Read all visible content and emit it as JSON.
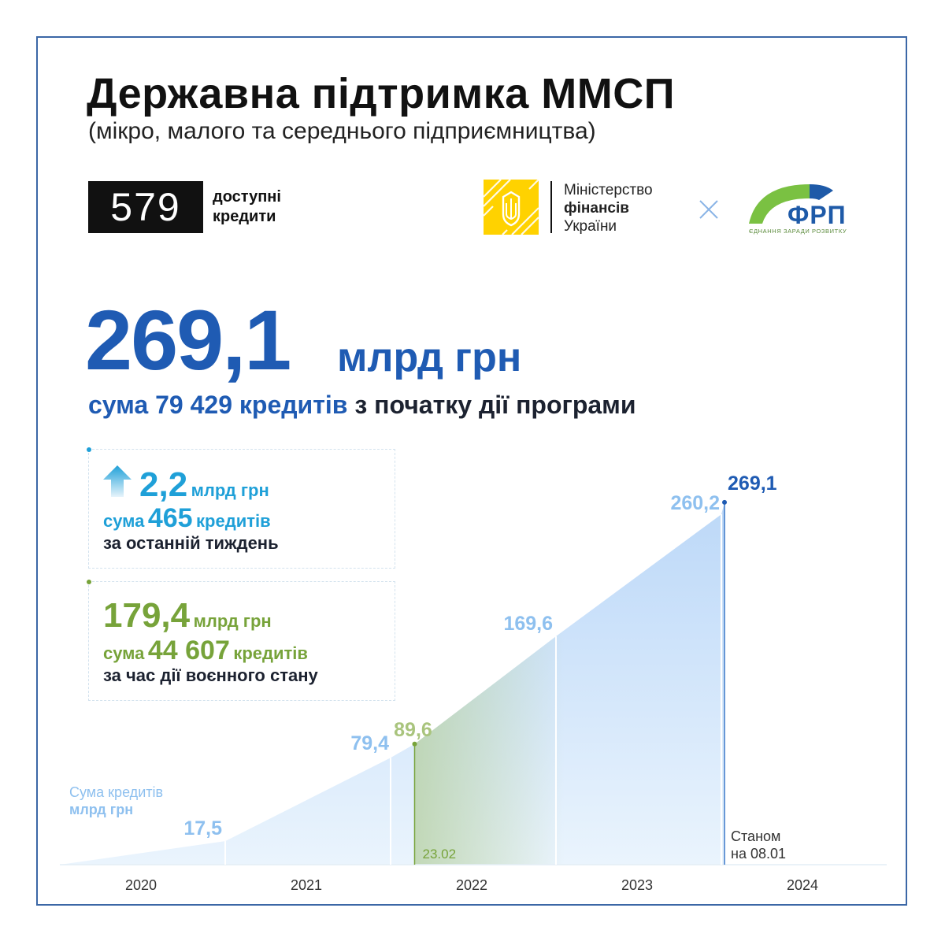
{
  "header": {
    "title": "Державна підтримка ММСП",
    "subtitle": "(мікро, малого та середнього підприємництва)"
  },
  "logos": {
    "logo_579": "579",
    "logo_579_caption": "доступні кредити",
    "minfin_line1": "Міністерство",
    "minfin_line2": "фінансів",
    "minfin_line3": "України",
    "frp_name": "ФРП",
    "frp_tagline": "ЄДНАННЯ ЗАРАДИ РОЗВИТКУ"
  },
  "headline": {
    "amount": "269,1",
    "unit": "млрд грн",
    "line_prefix": "сума",
    "loans_count": "79 429",
    "loans_word": "кредитів",
    "line_suffix": "з початку дії програми"
  },
  "cards": {
    "week": {
      "amount": "2,2",
      "unit": "млрд грн",
      "sum_word": "сума",
      "count": "465",
      "count_word": "кредитів",
      "period": "за останній тиждень"
    },
    "war": {
      "amount": "179,4",
      "unit": "млрд грн",
      "sum_word": "сума",
      "count": "44 607",
      "count_word": "кредитів",
      "period": "за час дії воєнного стану"
    }
  },
  "colors": {
    "primary_blue": "#1f5bb3",
    "cyan": "#1fa0d8",
    "green": "#77a33a",
    "area_fill": "#c7dffa",
    "value_label": "#8ec0ef"
  },
  "chart_data": {
    "type": "area",
    "ylabel_line1": "Сума кредитів",
    "ylabel_line2": "млрд грн",
    "x_ticks": [
      "2020",
      "2021",
      "2022",
      "2023",
      "2024"
    ],
    "points": [
      {
        "x": "2020-01-01",
        "y": 0
      },
      {
        "x": "2021-01-01",
        "y": 17.5,
        "label": "17,5"
      },
      {
        "x": "2022-01-01",
        "y": 79.4,
        "label": "79,4"
      },
      {
        "x": "2022-02-23",
        "y": 89.6,
        "label": "89,6"
      },
      {
        "x": "2023-01-01",
        "y": 169.6,
        "label": "169,6"
      },
      {
        "x": "2024-01-01",
        "y": 260.2,
        "label": "260,2"
      },
      {
        "x": "2024-01-08",
        "y": 269.1,
        "label": "269,1"
      }
    ],
    "war_start_label": "23.02",
    "as_of_label_line1": "Станом",
    "as_of_label_line2": "на 08.01"
  }
}
